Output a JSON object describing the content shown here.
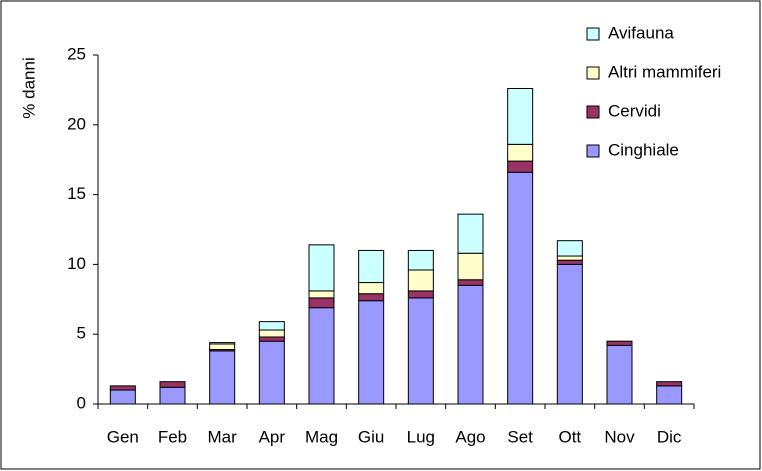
{
  "chart_data": {
    "type": "stacked_bar",
    "y_label": "% danni",
    "categories": [
      "Gen",
      "Feb",
      "Mar",
      "Apr",
      "Mag",
      "Giu",
      "Lug",
      "Ago",
      "Set",
      "Ott",
      "Nov",
      "Dic"
    ],
    "series": [
      {
        "name": "Cinghiale",
        "color": "#9999ff",
        "values": [
          1.0,
          1.2,
          3.8,
          4.5,
          6.9,
          7.4,
          7.6,
          8.5,
          16.6,
          10.0,
          4.2,
          1.3
        ]
      },
      {
        "name": "Cervidi",
        "color": "#993366",
        "values": [
          0.3,
          0.4,
          0.1,
          0.3,
          0.7,
          0.5,
          0.5,
          0.4,
          0.8,
          0.3,
          0.3,
          0.3
        ]
      },
      {
        "name": "Altri mammiferi",
        "color": "#ffffcc",
        "values": [
          0,
          0,
          0.4,
          0.5,
          0.5,
          0.8,
          1.5,
          1.9,
          1.2,
          0.3,
          0,
          0
        ]
      },
      {
        "name": "Avifauna",
        "color": "#ccffff",
        "values": [
          0,
          0,
          0.1,
          0.6,
          3.3,
          2.3,
          1.4,
          2.8,
          4.0,
          1.1,
          0,
          0
        ]
      }
    ],
    "ylim": [
      0,
      25
    ],
    "yticks": [
      0,
      5,
      10,
      15,
      20,
      25
    ],
    "grid": false,
    "legend": "top-right"
  }
}
